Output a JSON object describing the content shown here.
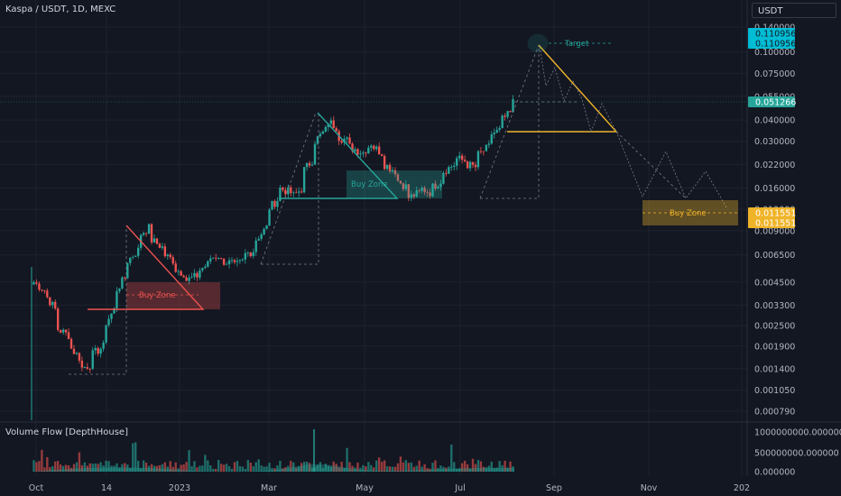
{
  "header": {
    "title": "Kaspa / USDT, 1D, MEXC"
  },
  "price_axis": {
    "currency": "USDT"
  },
  "volume_panel": {
    "title": "Volume Flow [DepthHouse]"
  },
  "colors": {
    "background": "#131722",
    "bull": "#26a69a",
    "bear": "#ef5350",
    "orange": "#f0b429",
    "cyan": "#00bcd4"
  },
  "chart_data": {
    "type": "candlestick",
    "y_scale": "log",
    "y_ticks": [
      "0.140000",
      "0.100000",
      "0.075000",
      "0.055000",
      "0.040000",
      "0.030000",
      "0.022000",
      "0.016000",
      "0.012000",
      "0.009000",
      "0.006500",
      "0.004500",
      "0.003300",
      "0.002500",
      "0.001900",
      "0.001400",
      "0.001050",
      "0.000790"
    ],
    "x_ticks": [
      "Oct",
      "14",
      "2023",
      "Mar",
      "May",
      "Jul",
      "Sep",
      "Nov",
      "202"
    ],
    "price_labels": [
      {
        "text": "0.110956",
        "color": "#00bcd4"
      },
      {
        "text": "0.110956",
        "color": "#00bcd4"
      },
      {
        "text": "0.051266",
        "color": "#26a69a"
      },
      {
        "text": "0.011551",
        "color": "#f0b429"
      },
      {
        "text": "0.011551",
        "color": "#f0b429"
      }
    ],
    "annotations": [
      {
        "text": "Buy Zone",
        "color": "#ef5350"
      },
      {
        "text": "Buy Zone",
        "color": "#26a69a"
      },
      {
        "text": "Buy Zone",
        "color": "#f0b429"
      },
      {
        "text": "Target",
        "color": "#26a69a"
      }
    ],
    "close_path": [
      [
        0.0026,
        0.0045
      ],
      [
        0.004,
        0.0038
      ],
      [
        0.003,
        0.0024
      ],
      [
        0.0022,
        0.0019
      ],
      [
        0.0016,
        0.0014
      ],
      [
        0.0015,
        0.0017
      ],
      [
        0.0019,
        0.0025
      ],
      [
        0.0032,
        0.004
      ],
      [
        0.005,
        0.006
      ],
      [
        0.007,
        0.0085
      ],
      [
        0.0095,
        0.008
      ],
      [
        0.0072,
        0.0066
      ],
      [
        0.006,
        0.0054
      ],
      [
        0.005,
        0.0046
      ],
      [
        0.0049,
        0.0052
      ],
      [
        0.0058,
        0.0062
      ],
      [
        0.0065,
        0.006
      ],
      [
        0.0058,
        0.0055
      ],
      [
        0.006,
        0.0065
      ],
      [
        0.007,
        0.008
      ],
      [
        0.0095,
        0.012
      ],
      [
        0.014,
        0.016
      ],
      [
        0.015,
        0.014
      ],
      [
        0.016,
        0.02
      ],
      [
        0.024,
        0.03
      ],
      [
        0.035,
        0.04
      ],
      [
        0.036,
        0.032
      ],
      [
        0.03,
        0.028
      ],
      [
        0.026,
        0.025
      ],
      [
        0.03,
        0.028
      ],
      [
        0.025,
        0.022
      ],
      [
        0.02,
        0.018
      ],
      [
        0.016,
        0.014
      ],
      [
        0.015,
        0.016
      ],
      [
        0.015,
        0.016
      ],
      [
        0.018,
        0.02
      ],
      [
        0.022,
        0.024
      ],
      [
        0.023,
        0.022
      ],
      [
        0.021,
        0.025
      ],
      [
        0.028,
        0.033
      ],
      [
        0.035,
        0.04
      ],
      [
        0.045,
        0.051
      ]
    ],
    "volume_axis": [
      "1000000000.000000",
      "500000000.000000",
      "0.000000"
    ]
  }
}
